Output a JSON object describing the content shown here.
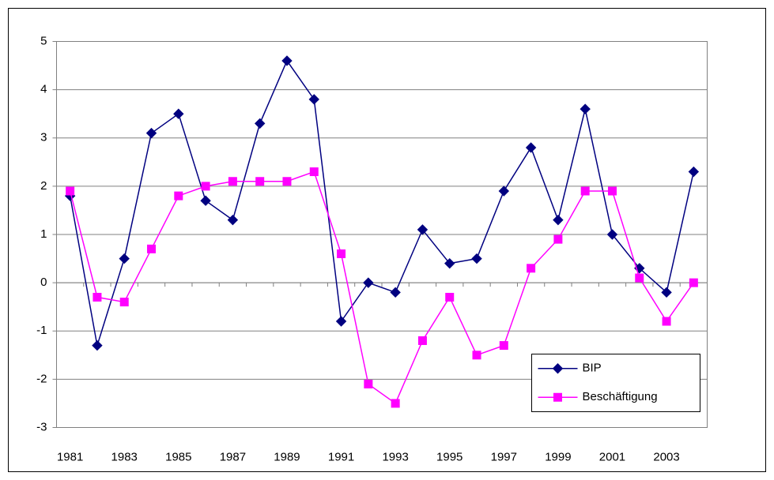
{
  "chart_data": {
    "type": "line",
    "categories": [
      "1981",
      null,
      "1983",
      null,
      "1985",
      null,
      "1987",
      null,
      "1989",
      null,
      "1991",
      null,
      "1993",
      null,
      "1995",
      null,
      "1997",
      null,
      "1999",
      null,
      "2001",
      null,
      "2003",
      null
    ],
    "series": [
      {
        "name": "BIP",
        "color": "#000080",
        "marker": "diamond",
        "values": [
          1.8,
          -1.3,
          0.5,
          3.1,
          3.5,
          1.7,
          1.3,
          3.3,
          4.6,
          3.8,
          -0.8,
          0.0,
          -0.2,
          1.1,
          0.4,
          0.5,
          1.9,
          2.8,
          1.3,
          3.6,
          1.0,
          0.3,
          -0.2,
          2.3
        ]
      },
      {
        "name": "Beschäftigung",
        "color": "#ff00ff",
        "marker": "square",
        "values": [
          1.9,
          -0.3,
          -0.4,
          0.7,
          1.8,
          2.0,
          2.1,
          2.1,
          2.1,
          2.3,
          0.6,
          -2.1,
          -2.5,
          -1.2,
          -0.3,
          -1.5,
          -1.3,
          0.3,
          0.9,
          1.9,
          1.9,
          0.1,
          -0.8,
          0.0
        ]
      }
    ],
    "ylim": [
      -3,
      5
    ],
    "yticks": [
      -3,
      -2,
      -1,
      0,
      1,
      2,
      3,
      4,
      5
    ],
    "grid": true,
    "legend": "lower-right"
  }
}
